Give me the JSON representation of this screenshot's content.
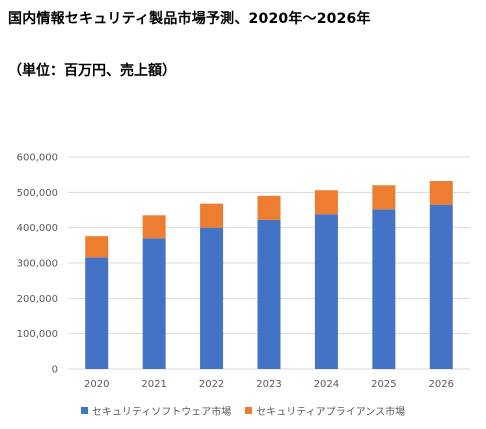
{
  "page": {
    "title": "国内情報セキュリティ製品市場予測、2020年～2026年",
    "subtitle": "（単位：百万円、売上額）"
  },
  "colors": {
    "software": "#4472c4",
    "appliance": "#ed7d31",
    "grid": "#d9d9d9",
    "tick_text": "#595959"
  },
  "chart_data": {
    "type": "bar",
    "stacked": true,
    "title": "国内情報セキュリティ製品市場予測、2020年～2026年",
    "subtitle": "（単位：百万円、売上額）",
    "categories": [
      "2020",
      "2021",
      "2022",
      "2023",
      "2024",
      "2025",
      "2026"
    ],
    "series": [
      {
        "name": "セキュリティソフトウェア市場",
        "color": "#4472c4",
        "values": [
          316000,
          370000,
          400000,
          422000,
          438000,
          452000,
          465000
        ]
      },
      {
        "name": "セキュリティアプライアンス市場",
        "color": "#ed7d31",
        "values": [
          60000,
          65000,
          68000,
          68000,
          68000,
          68000,
          67000
        ]
      }
    ],
    "ylim": [
      0,
      600000
    ],
    "yticks": [
      0,
      100000,
      200000,
      300000,
      400000,
      500000,
      600000
    ],
    "ytick_labels": [
      "0",
      "100,000",
      "200,000",
      "300,000",
      "400,000",
      "500,000",
      "600,000"
    ],
    "grid": true,
    "legend_position": "bottom"
  }
}
